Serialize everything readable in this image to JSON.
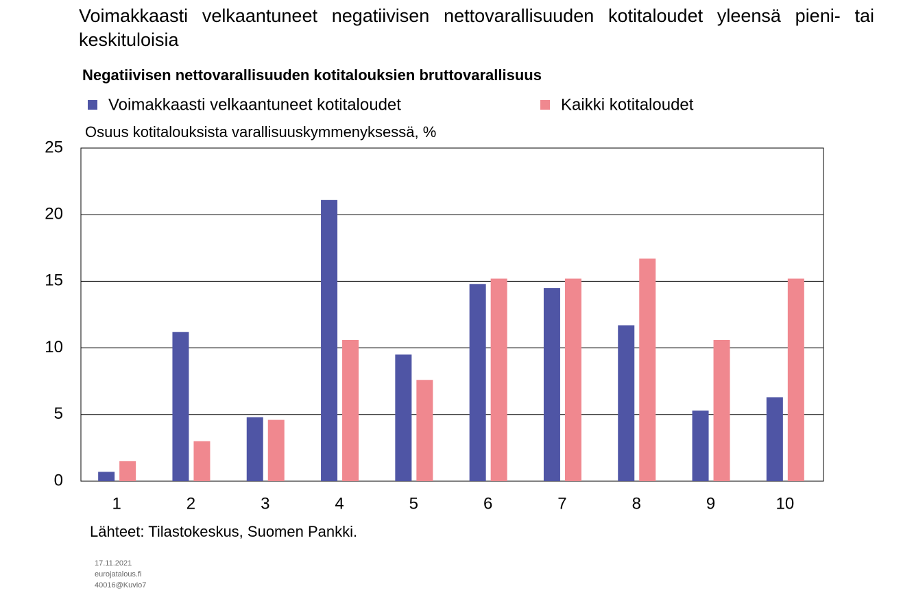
{
  "chart_data": {
    "type": "bar",
    "title": "Voimakkaasti velkaantuneet negatiivisen nettovarallisuuden kotitaloudet yleensä pieni- tai keskituloisia",
    "subtitle": "Negatiivisen nettovarallisuuden kotitalouksien bruttovarallisuus",
    "y_label": "Osuus kotitalouksista varallisuuskymmenyksessä, %",
    "source": "Lähteet: Tilastokeskus, Suomen Pankki.",
    "footnote": [
      "17.11.2021",
      "eurojatalous.fi",
      "40016@Kuvio7"
    ],
    "categories": [
      "1",
      "2",
      "3",
      "4",
      "5",
      "6",
      "7",
      "8",
      "9",
      "10"
    ],
    "series": [
      {
        "name": "Voimakkaasti velkaantuneet kotitaloudet",
        "color": "#4f55a5",
        "values": [
          0.7,
          11.2,
          4.8,
          21.1,
          9.5,
          14.8,
          14.5,
          11.7,
          5.3,
          6.3
        ]
      },
      {
        "name": "Kaikki kotitaloudet",
        "color": "#f0888f",
        "values": [
          1.5,
          3.0,
          4.6,
          10.6,
          7.6,
          15.2,
          15.2,
          16.7,
          10.6,
          15.2
        ]
      }
    ],
    "ylim": [
      0,
      25
    ],
    "yticks": [
      0,
      5,
      10,
      15,
      20,
      25
    ],
    "grid": true
  }
}
